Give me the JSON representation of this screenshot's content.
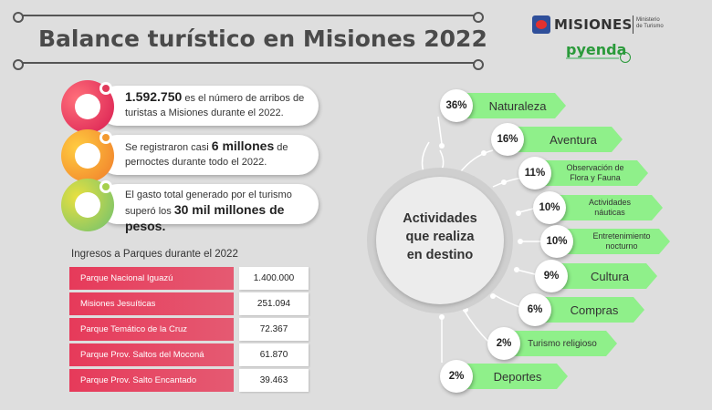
{
  "title": "Balance turístico en Misiones 2022",
  "logos": {
    "misiones": "MISIONES",
    "ministry": "Ministerio de Turismo",
    "pyenda": "pyenda"
  },
  "stats": [
    {
      "pre": "",
      "big": "1.592.750",
      "post": " es el número de arribos de turistas a Misiones durante el 2022."
    },
    {
      "pre": "Se registraron casi ",
      "big": "6 millones",
      "post": " de pernoctes durante todo el 2022."
    },
    {
      "pre": "El gasto total generado por el turismo superó los ",
      "big": "30 mil millones de pesos.",
      "post": ""
    }
  ],
  "parks": {
    "title": "Ingresos a Parques durante el 2022",
    "rows": [
      {
        "name": "Parque Nacional Iguazú",
        "value": "1.400.000"
      },
      {
        "name": "Misiones Jesuíticas",
        "value": "251.094"
      },
      {
        "name": "Parque Temático de la Cruz",
        "value": "72.367"
      },
      {
        "name": "Parque Prov. Saltos del Moconá",
        "value": "61.870"
      },
      {
        "name": "Parque Prov. Salto Encantado",
        "value": "39.463"
      }
    ]
  },
  "hub": {
    "line1": "Actividades",
    "line2": "que realiza",
    "line3": "en destino"
  },
  "activities": [
    {
      "pct": "36%",
      "label": "Naturaleza"
    },
    {
      "pct": "16%",
      "label": "Aventura"
    },
    {
      "pct": "11%",
      "label": "Observación de Flora y Fauna"
    },
    {
      "pct": "10%",
      "label": "Actividades náuticas"
    },
    {
      "pct": "10%",
      "label": "Entretenimiento nocturno"
    },
    {
      "pct": "9%",
      "label": "Cultura"
    },
    {
      "pct": "6%",
      "label": "Compras"
    },
    {
      "pct": "2%",
      "label": "Turismo religioso"
    },
    {
      "pct": "2%",
      "label": "Deportes"
    }
  ],
  "colors": {
    "accent_pink": "#e63a5a",
    "banner_green": "#8ff08a",
    "background": "#dedede"
  }
}
